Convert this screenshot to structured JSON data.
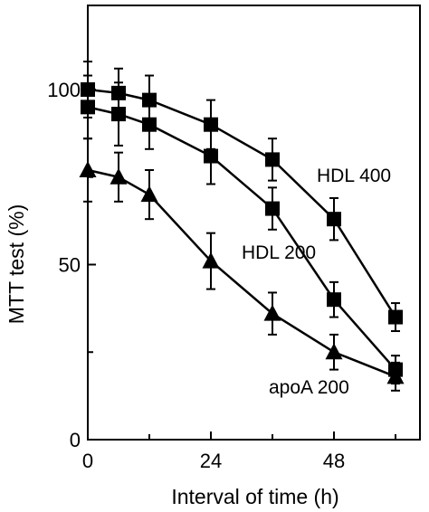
{
  "chart_data": {
    "type": "line",
    "title": "",
    "xlabel": "Interval of time (h)",
    "ylabel": "MTT test (%)",
    "xlim": [
      0,
      60
    ],
    "ylim": [
      0,
      125
    ],
    "x_ticks": [
      0,
      24,
      48
    ],
    "x_tick_labels": [
      "0",
      "24",
      "48"
    ],
    "y_ticks": [
      0,
      50,
      100
    ],
    "y_tick_labels": [
      "0",
      "50",
      "100"
    ],
    "grid": false,
    "legend": "none",
    "series": [
      {
        "name": "HDL 400",
        "marker": "square",
        "x": [
          0,
          6,
          12,
          24,
          36,
          48,
          60
        ],
        "y": [
          100,
          99,
          97,
          90,
          80,
          63,
          35
        ],
        "err": [
          8,
          7,
          7,
          7,
          6,
          6,
          4
        ]
      },
      {
        "name": "HDL 200",
        "marker": "square",
        "x": [
          0,
          6,
          12,
          24,
          36,
          48,
          60
        ],
        "y": [
          95,
          93,
          90,
          81,
          66,
          40,
          20
        ],
        "err": [
          9,
          9,
          7,
          8,
          6,
          5,
          4
        ]
      },
      {
        "name": "apoA 200",
        "marker": "triangle",
        "x": [
          0,
          6,
          12,
          24,
          36,
          48,
          60
        ],
        "y": [
          77,
          75,
          70,
          51,
          36,
          25,
          18
        ],
        "err": [
          9,
          7,
          7,
          8,
          6,
          5,
          4
        ]
      }
    ],
    "annotations": [
      {
        "text": "HDL 400",
        "series": "HDL 400"
      },
      {
        "text": "HDL 200",
        "series": "HDL 200"
      },
      {
        "text": "apoA 200",
        "series": "apoA 200"
      }
    ]
  }
}
